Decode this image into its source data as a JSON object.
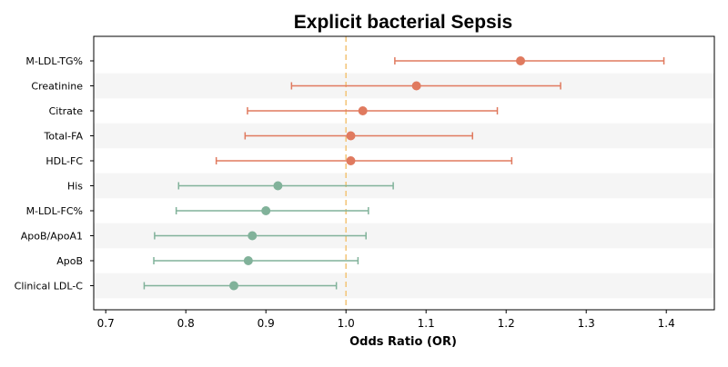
{
  "chart_data": {
    "type": "forest",
    "title": "Explicit bacterial Sepsis",
    "xlabel": "Odds Ratio (OR)",
    "ylabel": "",
    "xlim": [
      0.685,
      1.46
    ],
    "xticks": [
      0.7,
      0.8,
      0.9,
      1.0,
      1.1,
      1.2,
      1.3,
      1.4
    ],
    "reference_line": 1.0,
    "reference_color": "#f3c77e",
    "colors": {
      "risk": "#e07a5f",
      "protective": "#81b29a",
      "band": "#f5f5f5"
    },
    "rows": [
      {
        "label": "M-LDL-TG%",
        "or": 1.218,
        "lower": 1.061,
        "upper": 1.397,
        "group": "risk"
      },
      {
        "label": "Creatinine",
        "or": 1.088,
        "lower": 0.932,
        "upper": 1.268,
        "group": "risk"
      },
      {
        "label": "Citrate",
        "or": 1.021,
        "lower": 0.877,
        "upper": 1.189,
        "group": "risk"
      },
      {
        "label": "Total-FA",
        "or": 1.006,
        "lower": 0.874,
        "upper": 1.158,
        "group": "risk"
      },
      {
        "label": "HDL-FC",
        "or": 1.006,
        "lower": 0.838,
        "upper": 1.207,
        "group": "risk"
      },
      {
        "label": "His",
        "or": 0.915,
        "lower": 0.791,
        "upper": 1.059,
        "group": "protective"
      },
      {
        "label": "M-LDL-FC%",
        "or": 0.9,
        "lower": 0.788,
        "upper": 1.028,
        "group": "protective"
      },
      {
        "label": "ApoB/ApoA1",
        "or": 0.883,
        "lower": 0.761,
        "upper": 1.025,
        "group": "protective"
      },
      {
        "label": "ApoB",
        "or": 0.878,
        "lower": 0.76,
        "upper": 1.015,
        "group": "protective"
      },
      {
        "label": "Clinical LDL-C",
        "or": 0.86,
        "lower": 0.748,
        "upper": 0.988,
        "group": "protective"
      }
    ]
  }
}
